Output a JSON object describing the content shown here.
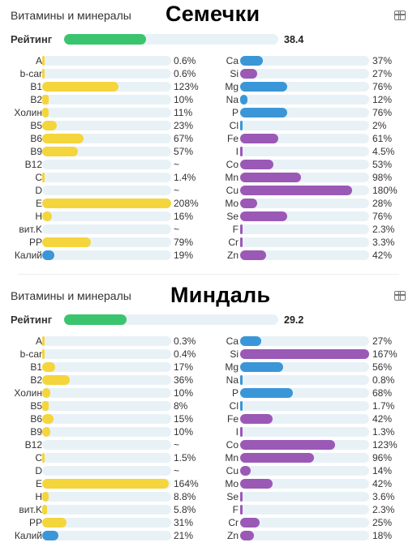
{
  "colors": {
    "vitamin": "#f4d53c",
    "mineral_blue": "#3b96d8",
    "mineral_purple": "#9b59b6",
    "track": "#e8f2f6",
    "rating": "#3bc46e"
  },
  "chart_data": [
    {
      "type": "bar",
      "panel_label": "Витамины и минералы",
      "title": "Семечки",
      "rating": {
        "label": "Рейтинг",
        "value": 38.4,
        "value_text": "38.4"
      },
      "scale_max_percent": 208,
      "left_series": [
        {
          "name": "A",
          "value": 0.6,
          "text": "0.6%",
          "color": "vitamin"
        },
        {
          "name": "b-car",
          "value": 0.6,
          "text": "0.6%",
          "color": "vitamin"
        },
        {
          "name": "B1",
          "value": 123,
          "text": "123%",
          "color": "vitamin"
        },
        {
          "name": "B2",
          "value": 10,
          "text": "10%",
          "color": "vitamin"
        },
        {
          "name": "Холин",
          "value": 11,
          "text": "11%",
          "color": "vitamin"
        },
        {
          "name": "B5",
          "value": 23,
          "text": "23%",
          "color": "vitamin"
        },
        {
          "name": "B6",
          "value": 67,
          "text": "67%",
          "color": "vitamin"
        },
        {
          "name": "B9",
          "value": 57,
          "text": "57%",
          "color": "vitamin"
        },
        {
          "name": "B12",
          "value": null,
          "text": "~",
          "color": "vitamin"
        },
        {
          "name": "C",
          "value": 1.4,
          "text": "1.4%",
          "color": "vitamin"
        },
        {
          "name": "D",
          "value": null,
          "text": "~",
          "color": "vitamin"
        },
        {
          "name": "E",
          "value": 208,
          "text": "208%",
          "color": "vitamin"
        },
        {
          "name": "H",
          "value": 16,
          "text": "16%",
          "color": "vitamin"
        },
        {
          "name": "вит.K",
          "value": null,
          "text": "~",
          "color": "vitamin"
        },
        {
          "name": "PP",
          "value": 79,
          "text": "79%",
          "color": "vitamin"
        },
        {
          "name": "Калий",
          "value": 19,
          "text": "19%",
          "color": "mineral_blue"
        }
      ],
      "right_series": [
        {
          "name": "Ca",
          "value": 37,
          "text": "37%",
          "color": "mineral_blue"
        },
        {
          "name": "Si",
          "value": 27,
          "text": "27%",
          "color": "mineral_purple"
        },
        {
          "name": "Mg",
          "value": 76,
          "text": "76%",
          "color": "mineral_blue"
        },
        {
          "name": "Na",
          "value": 12,
          "text": "12%",
          "color": "mineral_blue"
        },
        {
          "name": "P",
          "value": 76,
          "text": "76%",
          "color": "mineral_blue"
        },
        {
          "name": "Cl",
          "value": 2,
          "text": "2%",
          "color": "mineral_blue"
        },
        {
          "name": "Fe",
          "value": 61,
          "text": "61%",
          "color": "mineral_purple"
        },
        {
          "name": "I",
          "value": 4.5,
          "text": "4.5%",
          "color": "mineral_purple"
        },
        {
          "name": "Co",
          "value": 53,
          "text": "53%",
          "color": "mineral_purple"
        },
        {
          "name": "Mn",
          "value": 98,
          "text": "98%",
          "color": "mineral_purple"
        },
        {
          "name": "Cu",
          "value": 180,
          "text": "180%",
          "color": "mineral_purple"
        },
        {
          "name": "Mo",
          "value": 28,
          "text": "28%",
          "color": "mineral_purple"
        },
        {
          "name": "Se",
          "value": 76,
          "text": "76%",
          "color": "mineral_purple"
        },
        {
          "name": "F",
          "value": 2.3,
          "text": "2.3%",
          "color": "mineral_purple"
        },
        {
          "name": "Cr",
          "value": 3.3,
          "text": "3.3%",
          "color": "mineral_purple"
        },
        {
          "name": "Zn",
          "value": 42,
          "text": "42%",
          "color": "mineral_purple"
        }
      ]
    },
    {
      "type": "bar",
      "panel_label": "Витамины и минералы",
      "title": "Миндаль",
      "rating": {
        "label": "Рейтинг",
        "value": 29.2,
        "value_text": "29.2"
      },
      "scale_max_percent": 167,
      "left_series": [
        {
          "name": "A",
          "value": 0.3,
          "text": "0.3%",
          "color": "vitamin"
        },
        {
          "name": "b-car",
          "value": 0.4,
          "text": "0.4%",
          "color": "vitamin"
        },
        {
          "name": "B1",
          "value": 17,
          "text": "17%",
          "color": "vitamin"
        },
        {
          "name": "B2",
          "value": 36,
          "text": "36%",
          "color": "vitamin"
        },
        {
          "name": "Холин",
          "value": 10,
          "text": "10%",
          "color": "vitamin"
        },
        {
          "name": "B5",
          "value": 8,
          "text": "8%",
          "color": "vitamin"
        },
        {
          "name": "B6",
          "value": 15,
          "text": "15%",
          "color": "vitamin"
        },
        {
          "name": "B9",
          "value": 10,
          "text": "10%",
          "color": "vitamin"
        },
        {
          "name": "B12",
          "value": null,
          "text": "~",
          "color": "vitamin"
        },
        {
          "name": "C",
          "value": 1.5,
          "text": "1.5%",
          "color": "vitamin"
        },
        {
          "name": "D",
          "value": null,
          "text": "~",
          "color": "vitamin"
        },
        {
          "name": "E",
          "value": 164,
          "text": "164%",
          "color": "vitamin"
        },
        {
          "name": "H",
          "value": 8.8,
          "text": "8.8%",
          "color": "vitamin"
        },
        {
          "name": "вит.K",
          "value": 5.8,
          "text": "5.8%",
          "color": "vitamin"
        },
        {
          "name": "PP",
          "value": 31,
          "text": "31%",
          "color": "vitamin"
        },
        {
          "name": "Калий",
          "value": 21,
          "text": "21%",
          "color": "mineral_blue"
        }
      ],
      "right_series": [
        {
          "name": "Ca",
          "value": 27,
          "text": "27%",
          "color": "mineral_blue"
        },
        {
          "name": "Si",
          "value": 167,
          "text": "167%",
          "color": "mineral_purple"
        },
        {
          "name": "Mg",
          "value": 56,
          "text": "56%",
          "color": "mineral_blue"
        },
        {
          "name": "Na",
          "value": 0.8,
          "text": "0.8%",
          "color": "mineral_blue"
        },
        {
          "name": "P",
          "value": 68,
          "text": "68%",
          "color": "mineral_blue"
        },
        {
          "name": "Cl",
          "value": 1.7,
          "text": "1.7%",
          "color": "mineral_blue"
        },
        {
          "name": "Fe",
          "value": 42,
          "text": "42%",
          "color": "mineral_purple"
        },
        {
          "name": "I",
          "value": 1.3,
          "text": "1.3%",
          "color": "mineral_purple"
        },
        {
          "name": "Co",
          "value": 123,
          "text": "123%",
          "color": "mineral_purple"
        },
        {
          "name": "Mn",
          "value": 96,
          "text": "96%",
          "color": "mineral_purple"
        },
        {
          "name": "Cu",
          "value": 14,
          "text": "14%",
          "color": "mineral_purple"
        },
        {
          "name": "Mo",
          "value": 42,
          "text": "42%",
          "color": "mineral_purple"
        },
        {
          "name": "Se",
          "value": 3.6,
          "text": "3.6%",
          "color": "mineral_purple"
        },
        {
          "name": "F",
          "value": 2.3,
          "text": "2.3%",
          "color": "mineral_purple"
        },
        {
          "name": "Cr",
          "value": 25,
          "text": "25%",
          "color": "mineral_purple"
        },
        {
          "name": "Zn",
          "value": 18,
          "text": "18%",
          "color": "mineral_purple"
        }
      ]
    }
  ]
}
